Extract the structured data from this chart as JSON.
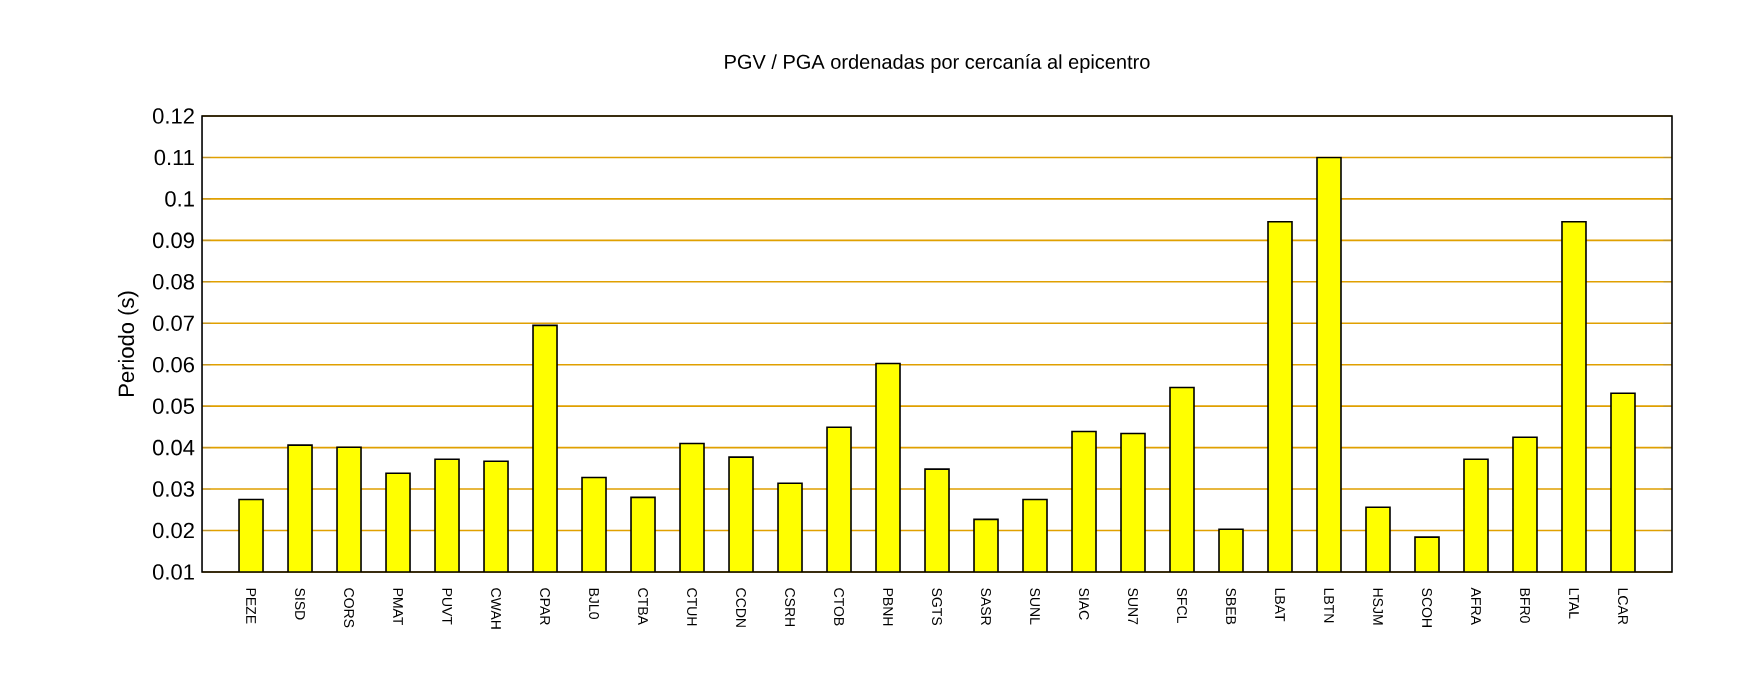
{
  "chart_data": {
    "type": "bar",
    "title": "PGV / PGA ordenadas por cercanía al epicentro",
    "ylabel": "Periodo (s)",
    "categories": [
      "PEZE",
      "SISD",
      "CORS",
      "PMAT",
      "PUVT",
      "CWAH",
      "CPAR",
      "BJL0",
      "CTBA",
      "CTUH",
      "CCDN",
      "CSRH",
      "CTOB",
      "PBNH",
      "SGTS",
      "SASR",
      "SUNL",
      "SIAC",
      "SUN7",
      "SFCL",
      "SBEB",
      "LBAT",
      "LBTN",
      "HSJM",
      "SCOH",
      "AFRA",
      "BFR0",
      "LTAL",
      "LCAR"
    ],
    "values": [
      0.0275,
      0.0406,
      0.0401,
      0.0338,
      0.0372,
      0.0367,
      0.0695,
      0.0328,
      0.028,
      0.041,
      0.0377,
      0.0314,
      0.0449,
      0.0603,
      0.0348,
      0.0227,
      0.0275,
      0.0439,
      0.0434,
      0.0545,
      0.0203,
      0.0945,
      0.11,
      0.0256,
      0.0184,
      0.0372,
      0.0425,
      0.0945,
      0.0531
    ],
    "color": "#ffff00",
    "ylim": [
      0.01,
      0.12
    ],
    "yticks": [
      0.01,
      0.02,
      0.03,
      0.04,
      0.05,
      0.06,
      0.07,
      0.08,
      0.09,
      0.1,
      0.11,
      0.12
    ],
    "grid": "y"
  }
}
